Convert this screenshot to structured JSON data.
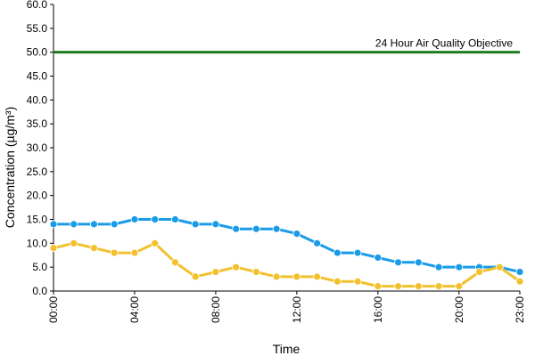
{
  "chart_data": {
    "type": "line",
    "title": "",
    "xlabel": "Time",
    "ylabel": "Concentration (µg/m³)",
    "ylim": [
      0,
      60
    ],
    "yticks": [
      "0.0",
      "5.0",
      "10.0",
      "15.0",
      "20.0",
      "25.0",
      "30.0",
      "35.0",
      "40.0",
      "45.0",
      "50.0",
      "55.0",
      "60.0"
    ],
    "xticks": [
      "00:00",
      "04:00",
      "08:00",
      "12:00",
      "16:00",
      "20:00",
      "23:00"
    ],
    "x": [
      "00:00",
      "01:00",
      "02:00",
      "03:00",
      "04:00",
      "05:00",
      "06:00",
      "07:00",
      "08:00",
      "09:00",
      "10:00",
      "11:00",
      "12:00",
      "13:00",
      "14:00",
      "15:00",
      "16:00",
      "17:00",
      "18:00",
      "19:00",
      "20:00",
      "21:00",
      "22:00",
      "23:00"
    ],
    "series": [
      {
        "color": "#1a9be8",
        "values": [
          14,
          14,
          14,
          14,
          15,
          15,
          15,
          14,
          14,
          13,
          13,
          13,
          12,
          10,
          8,
          8,
          7,
          6,
          6,
          5,
          5,
          5,
          5,
          4
        ]
      },
      {
        "color": "#f2c12e",
        "values": [
          9,
          10,
          9,
          8,
          8,
          10,
          6,
          3,
          4,
          5,
          4,
          3,
          3,
          3,
          2,
          2,
          1,
          1,
          1,
          1,
          1,
          4,
          5,
          2
        ]
      }
    ],
    "reference_line": {
      "value": 50,
      "label": "24 Hour Air Quality Objective",
      "color": "#1e7d1e"
    },
    "grid": false,
    "legend": "none"
  }
}
